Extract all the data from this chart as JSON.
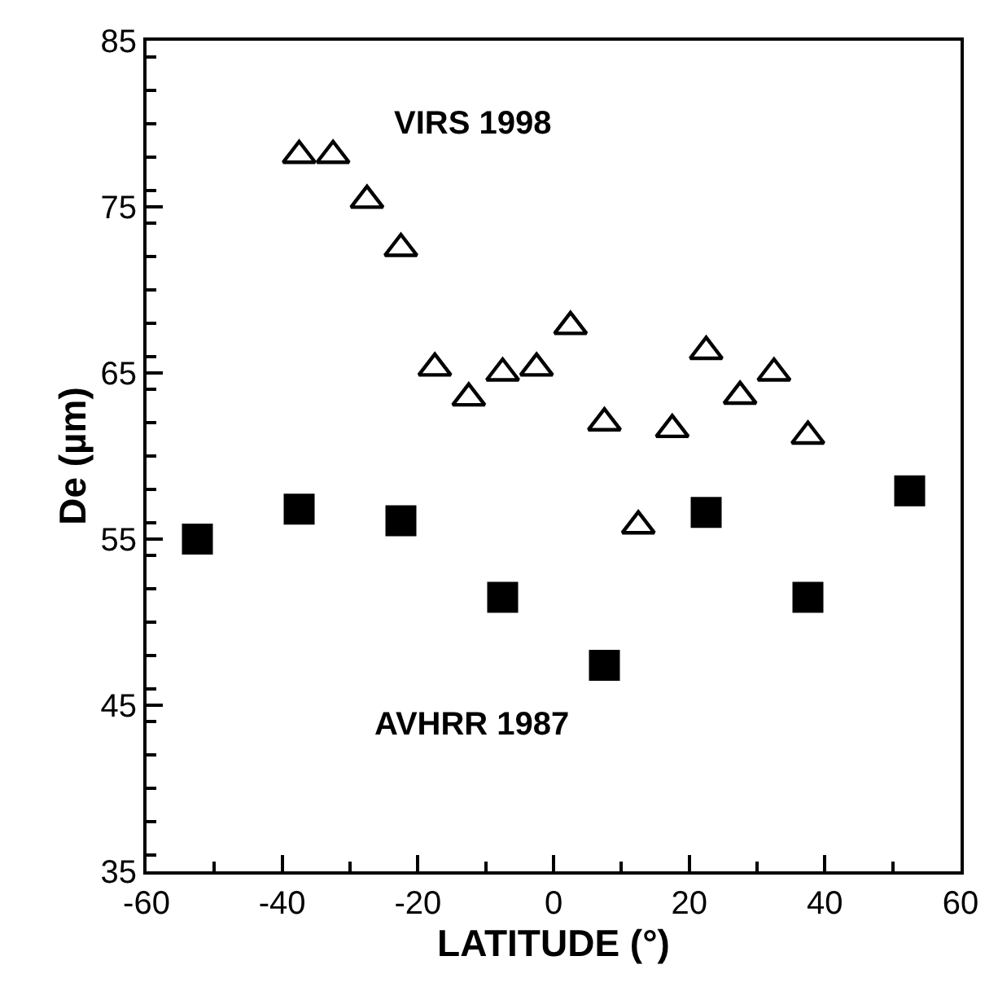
{
  "chart_data": {
    "type": "scatter",
    "xlabel": "LATITUDE (°)",
    "ylabel": "De (µm)",
    "xlim": [
      -60,
      60
    ],
    "xticks": [
      -60,
      -40,
      -20,
      0,
      20,
      40,
      60
    ],
    "ylim": [
      35,
      85
    ],
    "yticks": [
      35,
      45,
      55,
      65,
      75,
      85
    ],
    "series": [
      {
        "color": "#000000",
        "marker": "triangle",
        "x": [
          -37.5,
          -32.5,
          -27.5,
          -22.5,
          -17.5,
          -12.5,
          -7.5,
          -2.5,
          2.5,
          7.5,
          12.5,
          17.5,
          22.5,
          27.5,
          32.5,
          37.5
        ],
        "values": [
          78.1,
          78.1,
          75.4,
          72.5,
          65.3,
          63.5,
          65.0,
          65.3,
          67.8,
          62.0,
          55.8,
          61.6,
          66.3,
          63.6,
          65.0,
          61.2
        ]
      },
      {
        "color": "#000000",
        "marker": "square",
        "x": [
          -52.5,
          -37.5,
          -22.5,
          -7.5,
          7.5,
          22.5,
          37.5,
          52.5
        ],
        "values": [
          55.0,
          56.8,
          56.1,
          51.5,
          47.4,
          56.6,
          51.5,
          57.9
        ]
      }
    ],
    "annotations": [
      "VIRS 1998",
      "AVHRR 1987"
    ]
  }
}
